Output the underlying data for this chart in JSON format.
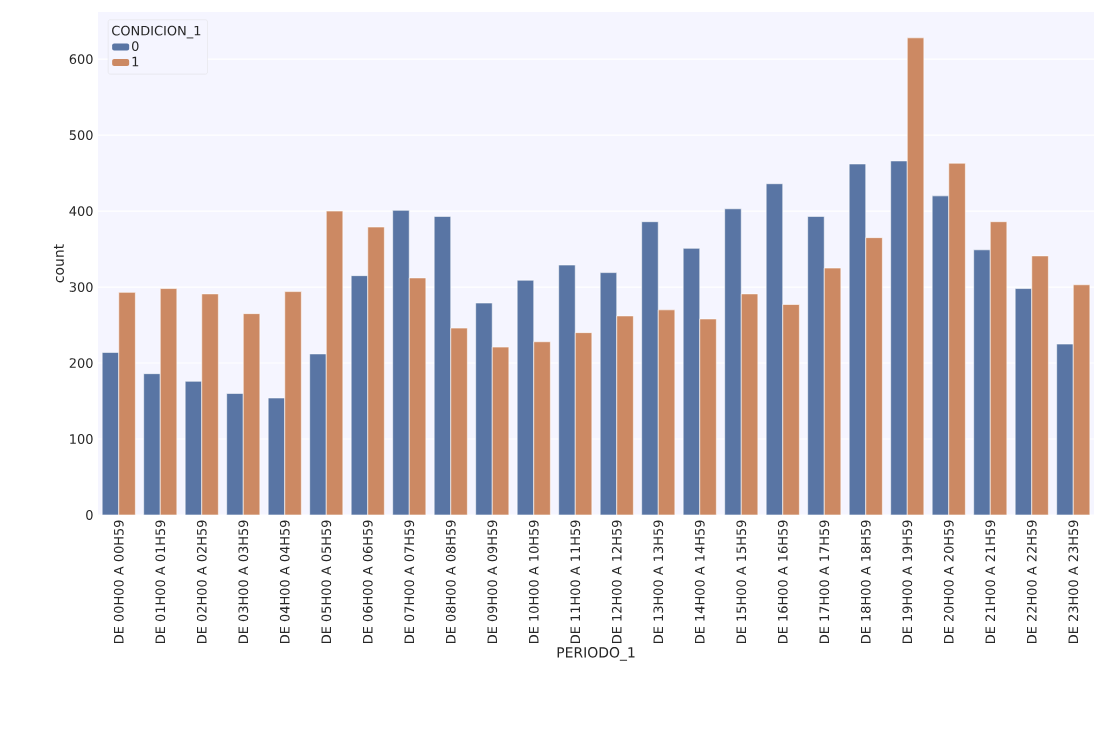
{
  "chart_data": {
    "type": "bar",
    "xlabel": "PERIODO_1",
    "ylabel": "count",
    "legend_title": "CONDICION_1",
    "categories": [
      "DE 00H00 A 00H59",
      "DE 01H00 A 01H59",
      "DE 02H00 A 02H59",
      "DE 03H00 A 03H59",
      "DE 04H00 A 04H59",
      "DE 05H00 A 05H59",
      "DE 06H00 A 06H59",
      "DE 07H00 A 07H59",
      "DE 08H00 A 08H59",
      "DE 09H00 A 09H59",
      "DE 10H00 A 10H59",
      "DE 11H00 A 11H59",
      "DE 12H00 A 12H59",
      "DE 13H00 A 13H59",
      "DE 14H00 A 14H59",
      "DE 15H00 A 15H59",
      "DE 16H00 A 16H59",
      "DE 17H00 A 17H59",
      "DE 18H00 A 18H59",
      "DE 19H00 A 19H59",
      "DE 20H00 A 20H59",
      "DE 21H00 A 21H59",
      "DE 22H00 A 22H59",
      "DE 23H00 A 23H59"
    ],
    "series": [
      {
        "name": "0",
        "color": "#5975a4",
        "values": [
          214,
          186,
          176,
          160,
          154,
          212,
          315,
          401,
          393,
          279,
          309,
          329,
          319,
          386,
          351,
          403,
          436,
          393,
          462,
          466,
          420,
          349,
          298,
          225
        ]
      },
      {
        "name": "1",
        "color": "#cc8963",
        "values": [
          293,
          298,
          291,
          265,
          294,
          400,
          379,
          312,
          246,
          221,
          228,
          240,
          262,
          270,
          258,
          291,
          277,
          325,
          365,
          628,
          463,
          386,
          341,
          303
        ]
      }
    ],
    "ylim": [
      0,
      662
    ],
    "yticks": [
      0,
      100,
      200,
      300,
      400,
      500,
      600
    ],
    "grid": "y",
    "legend": "top left"
  }
}
